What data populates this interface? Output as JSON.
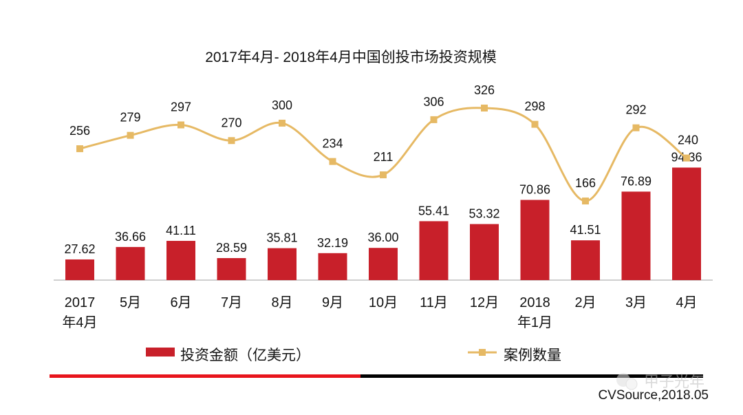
{
  "chart_data": {
    "type": "bar+line",
    "title": "2017年4月- 2018年4月中国创投市场投资规模",
    "categories": [
      [
        "2017",
        "年4月"
      ],
      [
        "5月"
      ],
      [
        "6月"
      ],
      [
        "7月"
      ],
      [
        "8月"
      ],
      [
        "9月"
      ],
      [
        "10月"
      ],
      [
        "11月"
      ],
      [
        "12月"
      ],
      [
        "2018",
        "年1月"
      ],
      [
        "2月"
      ],
      [
        "3月"
      ],
      [
        "4月"
      ]
    ],
    "series": [
      {
        "name": "投资金额（亿美元）",
        "type": "bar",
        "color": "#c8202a",
        "values": [
          27.62,
          36.66,
          41.11,
          28.59,
          35.81,
          32.19,
          36.0,
          55.41,
          53.32,
          70.86,
          41.51,
          76.89,
          94.36
        ],
        "labels": [
          "27.62",
          "36.66",
          "41.11",
          "28.59",
          "35.81",
          "32.19",
          "36.00",
          "55.41",
          "53.32",
          "70.86",
          "41.51",
          "76.89",
          "94.36"
        ]
      },
      {
        "name": "案例数量",
        "type": "line",
        "smooth": true,
        "marker": "square",
        "color": "#e6b964",
        "values": [
          256,
          279,
          297,
          270,
          300,
          234,
          211,
          306,
          326,
          298,
          166,
          292,
          240
        ],
        "labels": [
          "256",
          "279",
          "297",
          "270",
          "300",
          "234",
          "211",
          "306",
          "326",
          "298",
          "166",
          "292",
          "240"
        ]
      }
    ],
    "grid": false,
    "legend": "bottom",
    "source": "CVSource,2018.05"
  },
  "watermark": "甲子光年",
  "colors": {
    "bar": "#c8202a",
    "line": "#e6b964",
    "rule_red": "#e8141c",
    "rule_black": "#000000"
  }
}
